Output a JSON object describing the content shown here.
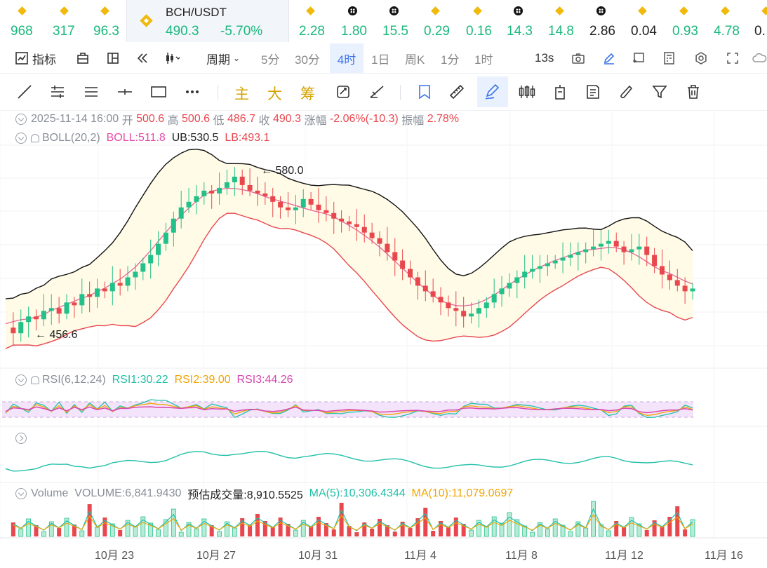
{
  "ticker": {
    "items": [
      {
        "price": "968",
        "icon": "bnb-icon",
        "color": "#1bb87d"
      },
      {
        "price": "317",
        "icon": "bnb-icon",
        "color": "#1bb87d"
      },
      {
        "price": "96.3",
        "icon": "bnb-icon",
        "color": "#1bb87d"
      },
      {
        "price": "2.28",
        "icon": "bnb-icon",
        "color": "#1bb87d"
      },
      {
        "price": "1.80",
        "icon": "okx-icon",
        "color": "#1bb87d"
      },
      {
        "price": "15.5",
        "icon": "okx-icon",
        "color": "#1bb87d"
      },
      {
        "price": "0.29",
        "icon": "bnb-icon",
        "color": "#1bb87d"
      },
      {
        "price": "0.16",
        "icon": "bnb-icon",
        "color": "#1bb87d"
      },
      {
        "price": "14.3",
        "icon": "okx-icon",
        "color": "#1bb87d"
      },
      {
        "price": "14.8",
        "icon": "bnb-icon",
        "color": "#1bb87d"
      },
      {
        "price": "2.86",
        "icon": "okx-icon",
        "color": "#222222"
      },
      {
        "price": "0.04",
        "icon": "bnb-icon",
        "color": "#222222"
      },
      {
        "price": "0.93",
        "icon": "bnb-icon",
        "color": "#1bb87d"
      },
      {
        "price": "4.78",
        "icon": "bnb-icon",
        "color": "#1bb87d"
      },
      {
        "price": "0.",
        "icon": "bnb-icon",
        "color": "#222222"
      }
    ],
    "active": {
      "pair": "BCH/USDT",
      "price": "490.3",
      "change": "-5.70%"
    }
  },
  "toolbar1": {
    "indicators": "指标",
    "period": "周期",
    "intervals": [
      "5分",
      "30分",
      "4时",
      "1日",
      "周K",
      "1分",
      "1时"
    ],
    "selected_interval": "4时",
    "countdown": "13s"
  },
  "toolbar2": {
    "main": "主",
    "big": "大",
    "chips": "筹"
  },
  "ohlc": {
    "date": "2025-11-14 16:00",
    "open_label": "开",
    "open": "500.6",
    "high_label": "高",
    "high": "500.6",
    "low_label": "低",
    "low": "486.7",
    "close_label": "收",
    "close": "490.3",
    "chg_label": "涨幅",
    "chg": "-2.06%(-10.3)",
    "amp_label": "振幅",
    "amp": "2.78%"
  },
  "boll": {
    "name": "BOLL(20,2)",
    "mid": "BOLL:511.8",
    "ub": "UB:530.5",
    "lb": "LB:493.1"
  },
  "rsi": {
    "name": "RSI(6,12,24)",
    "rsi1": "RSI1:30.22",
    "rsi2": "RSI2:39.00",
    "rsi3": "RSI3:44.26"
  },
  "volume": {
    "name": "Volume",
    "vol": "VOLUME:6,841.9430",
    "est": "预估成交量:8,910.5525",
    "ma5": "MA(5):10,306.4344",
    "ma10": "MA(10):11,079.0697"
  },
  "chart_data": {
    "type": "candlestick",
    "high_marker": "← 580.0",
    "low_marker": "← 456.6",
    "x_ticks": [
      "10月 23",
      "10月 27",
      "10月 31",
      "11月 4",
      "11月 8",
      "11月 12",
      "11月 16"
    ],
    "colors": {
      "up": "#22c08a",
      "down": "#e8474e",
      "boll_mid": "#e7649a",
      "boll_upper": "#111111",
      "boll_lower": "#e8474e",
      "band_fill": "#fffbe6",
      "rsi1": "#22c0a8",
      "rsi2": "#f0a500",
      "rsi3": "#d946b0"
    },
    "price_series": [
      462,
      458,
      466,
      470,
      468,
      474,
      476,
      472,
      480,
      478,
      486,
      484,
      490,
      488,
      494,
      492,
      498,
      502,
      508,
      514,
      522,
      530,
      540,
      548,
      552,
      556,
      560,
      558,
      562,
      566,
      570,
      564,
      560,
      558,
      556,
      552,
      548,
      546,
      548,
      554,
      550,
      546,
      544,
      540,
      538,
      536,
      534,
      530,
      526,
      522,
      516,
      510,
      504,
      498,
      492,
      488,
      484,
      480,
      476,
      474,
      470,
      472,
      476,
      480,
      486,
      490,
      494,
      498,
      502,
      504,
      506,
      508,
      510,
      512,
      514,
      516,
      518,
      520,
      522,
      524,
      520,
      516,
      518,
      520,
      514,
      506,
      500,
      496,
      492,
      488,
      490
    ]
  }
}
